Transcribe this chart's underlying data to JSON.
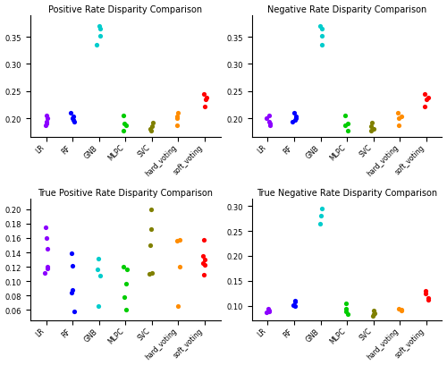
{
  "categories": [
    "LR",
    "RF",
    "GNB",
    "MLPC",
    "SVC",
    "hard_voting",
    "soft_voting"
  ],
  "colors": [
    "#8B00FF",
    "#0000FF",
    "#00CCCC",
    "#00CC00",
    "#808000",
    "#FF8C00",
    "#FF0000"
  ],
  "chart_data": [
    {
      "title": "Positive Rate Disparity Comparison",
      "ylim": [
        0.165,
        0.39
      ],
      "yticks": [
        0.2,
        0.25,
        0.3,
        0.35
      ],
      "data": [
        [
          0.205,
          0.2,
          0.193,
          0.19,
          0.188
        ],
        [
          0.211,
          0.203,
          0.2,
          0.197,
          0.193
        ],
        [
          0.37,
          0.365,
          0.352,
          0.335
        ],
        [
          0.205,
          0.191,
          0.188,
          0.178
        ],
        [
          0.192,
          0.186,
          0.181,
          0.178
        ],
        [
          0.211,
          0.203,
          0.201,
          0.188
        ],
        [
          0.244,
          0.238,
          0.235,
          0.222
        ]
      ]
    },
    {
      "title": "Negative Rate Disparity Comparison",
      "ylim": [
        0.165,
        0.39
      ],
      "yticks": [
        0.2,
        0.25,
        0.3,
        0.35
      ],
      "data": [
        [
          0.205,
          0.2,
          0.193,
          0.19,
          0.188
        ],
        [
          0.211,
          0.203,
          0.2,
          0.197,
          0.193
        ],
        [
          0.37,
          0.365,
          0.352,
          0.335
        ],
        [
          0.205,
          0.191,
          0.188,
          0.178
        ],
        [
          0.192,
          0.186,
          0.181,
          0.178
        ],
        [
          0.211,
          0.203,
          0.201,
          0.188
        ],
        [
          0.244,
          0.238,
          0.235,
          0.222
        ]
      ]
    },
    {
      "title": "True Positive Rate Disparity Comparison",
      "ylim": [
        0.045,
        0.215
      ],
      "yticks": [
        0.06,
        0.08,
        0.1,
        0.12,
        0.14,
        0.16,
        0.18,
        0.2
      ],
      "data": [
        [
          0.175,
          0.16,
          0.145,
          0.12,
          0.118,
          0.112
        ],
        [
          0.139,
          0.122,
          0.088,
          0.084,
          0.058
        ],
        [
          0.131,
          0.116,
          0.108,
          0.065
        ],
        [
          0.12,
          0.117,
          0.097,
          0.078,
          0.06
        ],
        [
          0.2,
          0.173,
          0.15,
          0.112,
          0.11
        ],
        [
          0.158,
          0.156,
          0.12,
          0.066
        ],
        [
          0.158,
          0.135,
          0.13,
          0.125,
          0.123,
          0.109
        ]
      ]
    },
    {
      "title": "True Negative Rate Disparity Comparison",
      "ylim": [
        0.07,
        0.315
      ],
      "yticks": [
        0.1,
        0.15,
        0.2,
        0.25,
        0.3
      ],
      "data": [
        [
          0.095,
          0.091,
          0.088,
          0.087
        ],
        [
          0.11,
          0.108,
          0.102,
          0.1
        ],
        [
          0.295,
          0.28,
          0.265
        ],
        [
          0.105,
          0.095,
          0.088,
          0.083
        ],
        [
          0.09,
          0.086,
          0.083,
          0.08
        ],
        [
          0.095,
          0.093,
          0.09
        ],
        [
          0.13,
          0.125,
          0.115,
          0.112
        ]
      ]
    }
  ]
}
